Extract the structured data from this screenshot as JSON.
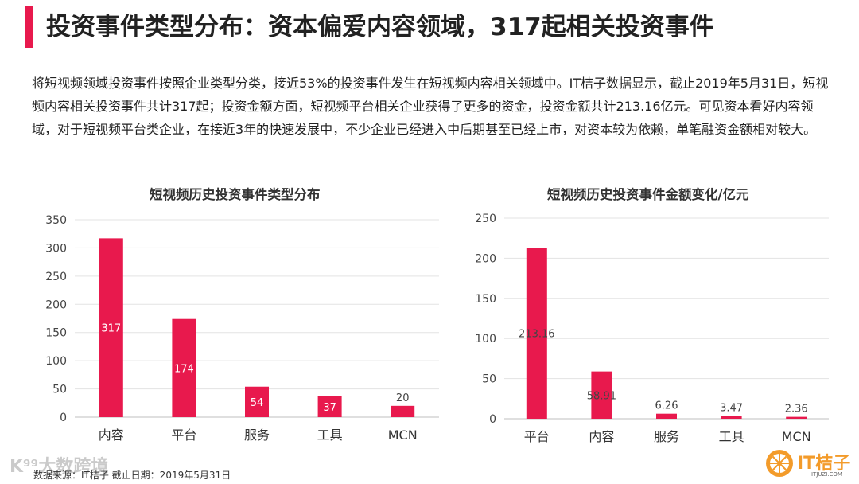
{
  "colors": {
    "accent": "#E8194D",
    "logo_orange": "#F39B2A"
  },
  "page_title": "投资事件类型分布：资本偏爱内容领域，317起相关投资事件",
  "intro": "将短视频领域投资事件按照企业类型分类，接近53%的投资事件发生在短视频内容相关领域中。IT桔子数据显示，截止2019年5月31日，短视频内容相关投资事件共计317起；投资金额方面，短视频平台相关企业获得了更多的资金，投资金额共计213.16亿元。可见资本看好内容领域，对于短视频平台类企业，在接近3年的快速发展中，不少企业已经进入中后期甚至已经上市，对资本较为依赖，单笔融资金额相对较大。",
  "chart_data": [
    {
      "type": "bar",
      "title": "短视频历史投资事件类型分布",
      "categories": [
        "内容",
        "平台",
        "服务",
        "工具",
        "MCN"
      ],
      "values": [
        317,
        174,
        54,
        37,
        20
      ],
      "data_labels": [
        "317",
        "174",
        "54",
        "37",
        "20"
      ],
      "yticks": [
        "0",
        "50",
        "100",
        "150",
        "200",
        "250",
        "300",
        "350"
      ],
      "ylim": [
        0,
        350
      ],
      "grid": true
    },
    {
      "type": "bar",
      "title": "短视频历史投资事件金额变化/亿元",
      "categories": [
        "平台",
        "内容",
        "服务",
        "工具",
        "MCN"
      ],
      "values": [
        213.16,
        58.91,
        6.26,
        3.47,
        2.36
      ],
      "data_labels": [
        "213.16",
        "58.91",
        "6.26",
        "3.47",
        "2.36"
      ],
      "yticks": [
        "0",
        "50",
        "100",
        "150",
        "200",
        "250"
      ],
      "ylim": [
        0,
        250
      ],
      "grid": true
    }
  ],
  "source": "数据来源：IT桔子 截止日期：2019年5月31日",
  "watermark": "K⁹⁹大数跨境",
  "logo": {
    "text": "IT桔子",
    "sub": "ITJUZI.COM"
  }
}
